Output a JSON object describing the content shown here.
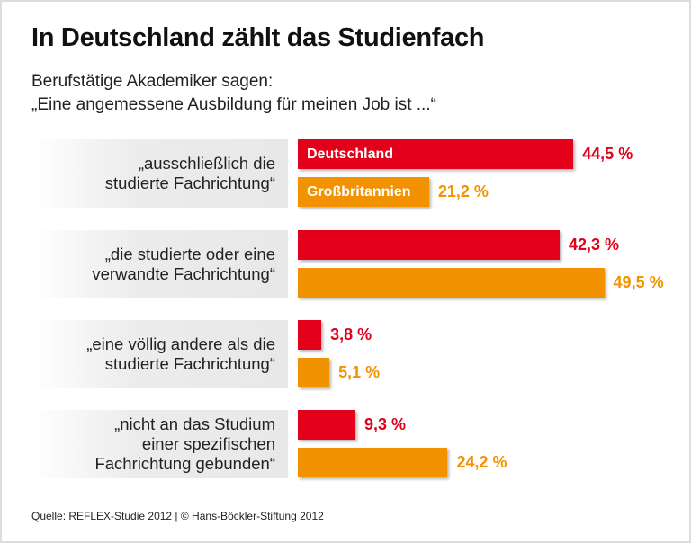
{
  "chart_data": {
    "type": "bar",
    "orientation": "horizontal",
    "title": "In Deutschland zählt das Studienfach",
    "subtitle": [
      "Berufstätige Akademiker sagen:",
      "„Eine angemessene Ausbildung für meinen Job ist ...“"
    ],
    "categories": [
      "„ausschließlich die\nstudierte Fachrichtung“",
      "„die studierte oder eine\nverwandte Fachrichtung“",
      "„eine völlig andere als die\nstudierte Fachrichtung“",
      "„nicht an das Studium\neiner spezifischen\nFachrichtung gebunden“"
    ],
    "series": [
      {
        "name": "Deutschland",
        "color": "#e2001a",
        "values": [
          44.5,
          42.3,
          3.8,
          9.3
        ],
        "labels": [
          "44,5 %",
          "42,3 %",
          "3,8 %",
          "9,3 %"
        ]
      },
      {
        "name": "Großbritannien",
        "color": "#f39200",
        "values": [
          21.2,
          49.5,
          5.1,
          24.2
        ],
        "labels": [
          "21,2 %",
          "49,5 %",
          "5,1 %",
          "24,2 %"
        ]
      }
    ],
    "unit": "%",
    "source": "Quelle: REFLEX-Studie 2012 | © Hans-Böckler-Stiftung 2012"
  }
}
